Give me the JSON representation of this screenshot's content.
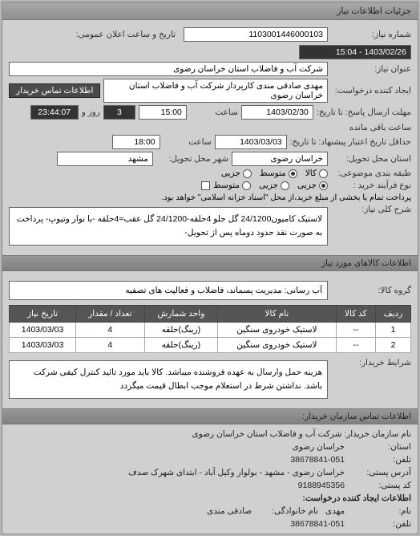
{
  "headers": {
    "main": "جزئیات اطلاعات نیاز",
    "items": "اطلاعات کالاهای مورد نیاز",
    "buyer": "اطلاعات تماس سازمان خریدار:"
  },
  "labels": {
    "reqNo": "شماره نیاز:",
    "reqName": "عنوان نیاز:",
    "requester": "ایجاد کننده درخواست:",
    "deadlineTo": "مهلت ارسال پاسخ: تا تاریخ:",
    "saat": "ساعت",
    "deliveryTo": "حداقل تاریخ اعتبار پیشنهاد: تا تاریخ:",
    "province": "استان محل تحویل:",
    "city": "شهر محل تحویل:",
    "budgetType": "طبقه بندی موضوعی:",
    "paymentType": "نوع فرآیند خرید :",
    "pubDate": "تاریخ و ساعت اعلان عمومی:",
    "roozVa": "روز و",
    "baghi": "ساعت باقی مانده",
    "contactBtn": "اطلاعات تماس خریدار",
    "kaliDesc": "شرح کلی نیاز:",
    "goodsGroup": "گروه کالا:",
    "buyerConditions": "شرایط خریدار:",
    "orgName": "نام سازمان خریدار:",
    "ostan": "استان:",
    "tel": "تلفن:",
    "postAddr": "آدرس پستی:",
    "postCode": "کد پستی:",
    "reqCreator": "اطلاعات ایجاد کننده درخواست:",
    "name": "نام:",
    "family": "نام خانوادگی:"
  },
  "radios": {
    "budget": {
      "opts": [
        "کالا",
        "متوسط",
        "جزیی"
      ],
      "sel": 1
    },
    "pay": {
      "opts": [
        "جزیی",
        "جزیی",
        "متوسط"
      ],
      "sel": 0
    },
    "payNote": "پرداخت تمام یا بخشی از مبلغ خرید،از محل \"اسناد خزانه اسلامی\" خواهد بود."
  },
  "vals": {
    "reqNo": "1103001446000103",
    "reqName": "شرکت آب و فاضلاب استان خراسان رضوی",
    "requester": "مهدی صادقی مندی کارپرداز شرکت آب و فاضلاب استان خراسان رضوی",
    "deadlineDate": "1403/02/30",
    "deadlineTime": "15:00",
    "deliveryDate": "1403/03/03",
    "deliveryTime": "18:00",
    "province": "خراسان رضوی",
    "city": "مشهد",
    "pubDate": "1403/02/26 - 15:04",
    "remainDays": "3",
    "remainHours": "23:44:07",
    "kaliDesc": "لاستیک کامیون24/1200 گل جلو 4حلقه-24/1200 گل عقب=4حلقه -با نوار وتیوپ- پرداخت به صورت نقد حدود دوماه پس از تحویل-",
    "goodsGroup": "آب رسانی: مدیریت پسماند، فاضلاب و فعالیت های تصفیه",
    "buyerConditions": "هزینه حمل وارسال به عهده فروشنده میباشد. کالا باید مورد تائید کنترل کیفی شرکت باشد. نداشتن شرط در استعلام موجب ابطال قیمت میگردد"
  },
  "table": {
    "cols": [
      "ردیف",
      "کد کالا",
      "نام کالا",
      "واحد شمارش",
      "تعداد / مقدار",
      "تاریخ نیاز"
    ],
    "rows": [
      [
        "1",
        "--",
        "لاستیک خودروی سنگین",
        "(رینگ)حلقه",
        "4",
        "1403/03/03"
      ],
      [
        "2",
        "--",
        "لاستیک خودروی سنگین",
        "(رینگ)حلقه",
        "4",
        "1403/03/03"
      ]
    ]
  },
  "buyer": {
    "orgName": "شرکت آب و فاضلاب استان خراسان رضوی",
    "ostan": "خراسان رضوی",
    "tel": "38678841-051",
    "postAddr": "خراسان رضوی - مشهد - بولوار وکیل آباد - ابتدای شهرک صدف",
    "postCode": "9188945356",
    "name": "مهدی",
    "family": "صادقی مندی",
    "tel2": "38678841-051"
  }
}
